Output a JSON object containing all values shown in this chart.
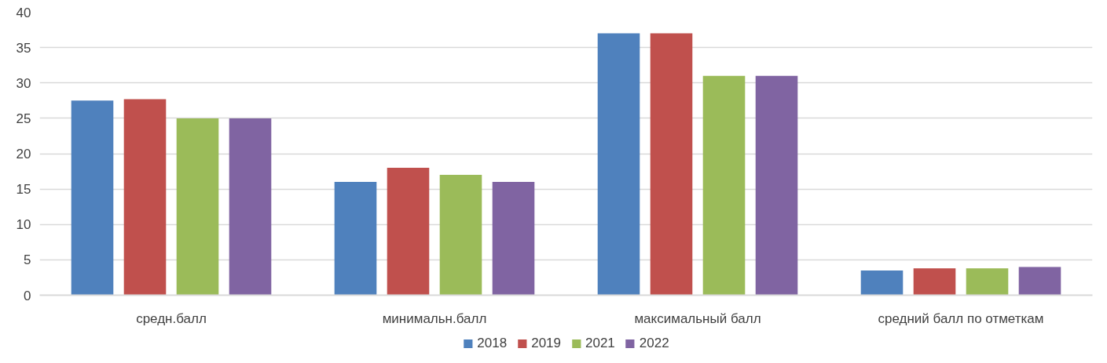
{
  "chart_data": {
    "type": "bar",
    "categories": [
      "средн.балл",
      "минимальн.балл",
      "максимальный балл",
      "средний балл по отметкам"
    ],
    "series": [
      {
        "name": "2018",
        "color": "#4f81bd",
        "values": [
          27.5,
          16,
          37,
          3.5
        ]
      },
      {
        "name": "2019",
        "color": "#c0504d",
        "values": [
          27.7,
          18,
          37,
          3.8
        ]
      },
      {
        "name": "2021",
        "color": "#9bbb59",
        "values": [
          25,
          17,
          31,
          3.8
        ]
      },
      {
        "name": "2022",
        "color": "#8064a2",
        "values": [
          25,
          16,
          31,
          4.0
        ]
      }
    ],
    "ylim": [
      0,
      40
    ],
    "yticks": [
      0,
      5,
      10,
      15,
      20,
      25,
      30,
      35,
      40
    ],
    "grid": "y",
    "legend": "bottom"
  }
}
